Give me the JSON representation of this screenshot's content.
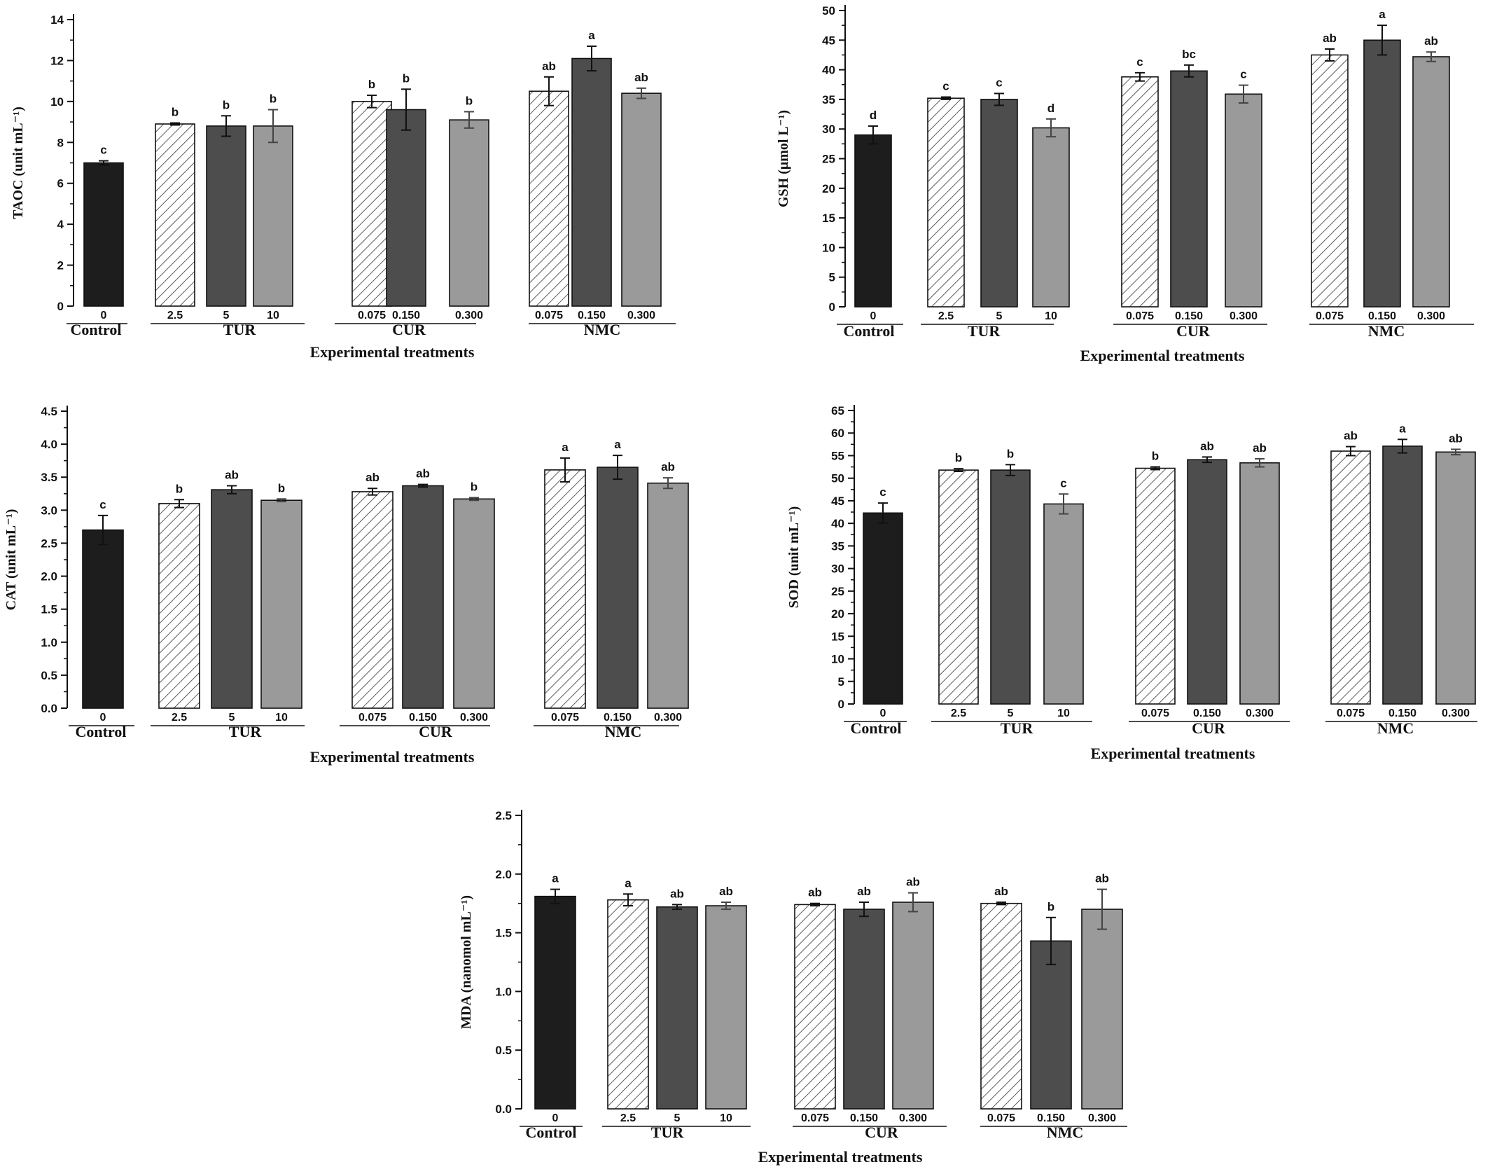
{
  "chart_data": [
    {
      "id": "taoc",
      "type": "bar",
      "ylabel": "TAOC (unit mL⁻¹)",
      "xlabel": "Experimental treatments",
      "ylim": [
        0,
        14
      ],
      "yticks": [
        "0",
        "2",
        "4",
        "6",
        "8",
        "10",
        "12",
        "14"
      ],
      "ytick_values": [
        0,
        2,
        4,
        6,
        8,
        10,
        12,
        14
      ],
      "groups": [
        {
          "name": "Control",
          "bars": [
            {
              "label": "0",
              "style": "black",
              "value": 7.0,
              "error": 0.1,
              "sig": "c"
            }
          ]
        },
        {
          "name": "TUR",
          "bars": [
            {
              "label": "2.5",
              "style": "hatch",
              "value": 8.9,
              "error": 0.05,
              "sig": "b"
            },
            {
              "label": "5",
              "style": "dark",
              "value": 8.8,
              "error": 0.5,
              "sig": "b"
            },
            {
              "label": "10",
              "style": "light",
              "value": 8.8,
              "error": 0.8,
              "sig": "b"
            }
          ]
        },
        {
          "name": "CUR",
          "bars": [
            {
              "label": "0.075",
              "style": "hatch",
              "value": 10.0,
              "error": 0.3,
              "sig": "b"
            },
            {
              "label": "0.150",
              "style": "dark",
              "value": 9.6,
              "error": 1.0,
              "sig": "b"
            },
            {
              "label": "0.300",
              "style": "light",
              "value": 9.1,
              "error": 0.4,
              "sig": "b"
            }
          ]
        },
        {
          "name": "NMC",
          "bars": [
            {
              "label": "0.075",
              "style": "hatch",
              "value": 10.5,
              "error": 0.7,
              "sig": "ab"
            },
            {
              "label": "0.150",
              "style": "dark",
              "value": 12.1,
              "error": 0.6,
              "sig": "a"
            },
            {
              "label": "0.300",
              "style": "light",
              "value": 10.4,
              "error": 0.25,
              "sig": "ab"
            }
          ]
        }
      ]
    },
    {
      "id": "gsh",
      "type": "bar",
      "ylabel": "GSH (μmol L⁻¹)",
      "xlabel": "Experimental treatments",
      "ylim": [
        0,
        50
      ],
      "yticks": [
        "0",
        "5",
        "10",
        "15",
        "20",
        "25",
        "30",
        "35",
        "40",
        "45",
        "50"
      ],
      "ytick_values": [
        0,
        5,
        10,
        15,
        20,
        25,
        30,
        35,
        40,
        45,
        50
      ],
      "groups": [
        {
          "name": "Control",
          "bars": [
            {
              "label": "0",
              "style": "black",
              "value": 29.0,
              "error": 1.5,
              "sig": "d"
            }
          ]
        },
        {
          "name": "TUR",
          "bars": [
            {
              "label": "2.5",
              "style": "hatch",
              "value": 35.2,
              "error": 0.2,
              "sig": "c"
            },
            {
              "label": "5",
              "style": "dark",
              "value": 35.0,
              "error": 1.0,
              "sig": "c"
            },
            {
              "label": "10",
              "style": "light",
              "value": 30.2,
              "error": 1.5,
              "sig": "d"
            }
          ]
        },
        {
          "name": "CUR",
          "bars": [
            {
              "label": "0.075",
              "style": "hatch",
              "value": 38.8,
              "error": 0.7,
              "sig": "c"
            },
            {
              "label": "0.150",
              "style": "dark",
              "value": 39.8,
              "error": 1.0,
              "sig": "bc"
            },
            {
              "label": "0.300",
              "style": "light",
              "value": 35.9,
              "error": 1.5,
              "sig": "c"
            }
          ]
        },
        {
          "name": "NMC",
          "bars": [
            {
              "label": "0.075",
              "style": "hatch",
              "value": 42.5,
              "error": 1.0,
              "sig": "ab"
            },
            {
              "label": "0.150",
              "style": "dark",
              "value": 45.0,
              "error": 2.5,
              "sig": "a"
            },
            {
              "label": "0.300",
              "style": "light",
              "value": 42.2,
              "error": 0.8,
              "sig": "ab"
            }
          ]
        }
      ]
    },
    {
      "id": "cat",
      "type": "bar",
      "ylabel": "CAT (unit mL⁻¹)",
      "xlabel": "Experimental treatments",
      "ylim": [
        0,
        4.5
      ],
      "yticks": [
        "0.0",
        "0.5",
        "1.0",
        "1.5",
        "2.0",
        "2.5",
        "3.0",
        "3.5",
        "4.0",
        "4.5"
      ],
      "ytick_values": [
        0,
        0.5,
        1.0,
        1.5,
        2.0,
        2.5,
        3.0,
        3.5,
        4.0,
        4.5
      ],
      "groups": [
        {
          "name": "Control",
          "bars": [
            {
              "label": "0",
              "style": "black",
              "value": 2.7,
              "error": 0.22,
              "sig": "c"
            }
          ]
        },
        {
          "name": "TUR",
          "bars": [
            {
              "label": "2.5",
              "style": "hatch",
              "value": 3.1,
              "error": 0.06,
              "sig": "b"
            },
            {
              "label": "5",
              "style": "dark",
              "value": 3.31,
              "error": 0.06,
              "sig": "ab"
            },
            {
              "label": "10",
              "style": "light",
              "value": 3.15,
              "error": 0.02,
              "sig": "b"
            }
          ]
        },
        {
          "name": "CUR",
          "bars": [
            {
              "label": "0.075",
              "style": "hatch",
              "value": 3.28,
              "error": 0.05,
              "sig": "ab"
            },
            {
              "label": "0.150",
              "style": "dark",
              "value": 3.37,
              "error": 0.02,
              "sig": "ab"
            },
            {
              "label": "0.300",
              "style": "light",
              "value": 3.17,
              "error": 0.02,
              "sig": "b"
            }
          ]
        },
        {
          "name": "NMC",
          "bars": [
            {
              "label": "0.075",
              "style": "hatch",
              "value": 3.61,
              "error": 0.18,
              "sig": "a"
            },
            {
              "label": "0.150",
              "style": "dark",
              "value": 3.65,
              "error": 0.18,
              "sig": "a"
            },
            {
              "label": "0.300",
              "style": "light",
              "value": 3.41,
              "error": 0.08,
              "sig": "ab"
            }
          ]
        }
      ]
    },
    {
      "id": "sod",
      "type": "bar",
      "ylabel": "SOD (unit mL⁻¹)",
      "xlabel": "Experimental treatments",
      "ylim": [
        0,
        65
      ],
      "yticks": [
        "0",
        "5",
        "10",
        "15",
        "20",
        "25",
        "30",
        "35",
        "40",
        "45",
        "50",
        "55",
        "60",
        "65"
      ],
      "ytick_values": [
        0,
        5,
        10,
        15,
        20,
        25,
        30,
        35,
        40,
        45,
        50,
        55,
        60,
        65
      ],
      "groups": [
        {
          "name": "Control",
          "bars": [
            {
              "label": "0",
              "style": "black",
              "value": 42.3,
              "error": 2.2,
              "sig": "c"
            }
          ]
        },
        {
          "name": "TUR",
          "bars": [
            {
              "label": "2.5",
              "style": "hatch",
              "value": 51.8,
              "error": 0.3,
              "sig": "b"
            },
            {
              "label": "5",
              "style": "dark",
              "value": 51.8,
              "error": 1.2,
              "sig": "b"
            },
            {
              "label": "10",
              "style": "light",
              "value": 44.3,
              "error": 2.2,
              "sig": "c"
            }
          ]
        },
        {
          "name": "CUR",
          "bars": [
            {
              "label": "0.075",
              "style": "hatch",
              "value": 52.2,
              "error": 0.3,
              "sig": "b"
            },
            {
              "label": "0.150",
              "style": "dark",
              "value": 54.1,
              "error": 0.6,
              "sig": "ab"
            },
            {
              "label": "0.300",
              "style": "light",
              "value": 53.4,
              "error": 0.9,
              "sig": "ab"
            }
          ]
        },
        {
          "name": "NMC",
          "bars": [
            {
              "label": "0.075",
              "style": "hatch",
              "value": 56.0,
              "error": 1.0,
              "sig": "ab"
            },
            {
              "label": "0.150",
              "style": "dark",
              "value": 57.1,
              "error": 1.5,
              "sig": "a"
            },
            {
              "label": "0.300",
              "style": "light",
              "value": 55.8,
              "error": 0.6,
              "sig": "ab"
            }
          ]
        }
      ]
    },
    {
      "id": "mda",
      "type": "bar",
      "ylabel": "MDA (nanomol mL⁻¹)",
      "xlabel": "Experimental treatments",
      "ylim": [
        0,
        2.5
      ],
      "yticks": [
        "0.0",
        "0.5",
        "1.0",
        "1.5",
        "2.0",
        "2.5"
      ],
      "ytick_values": [
        0,
        0.5,
        1.0,
        1.5,
        2.0,
        2.5
      ],
      "groups": [
        {
          "name": "Control",
          "bars": [
            {
              "label": "0",
              "style": "black",
              "value": 1.81,
              "error": 0.06,
              "sig": "a"
            }
          ]
        },
        {
          "name": "TUR",
          "bars": [
            {
              "label": "2.5",
              "style": "hatch",
              "value": 1.78,
              "error": 0.05,
              "sig": "a"
            },
            {
              "label": "5",
              "style": "dark",
              "value": 1.72,
              "error": 0.02,
              "sig": "ab"
            },
            {
              "label": "10",
              "style": "light",
              "value": 1.73,
              "error": 0.03,
              "sig": "ab"
            }
          ]
        },
        {
          "name": "CUR",
          "bars": [
            {
              "label": "0.075",
              "style": "hatch",
              "value": 1.74,
              "error": 0.01,
              "sig": "ab"
            },
            {
              "label": "0.150",
              "style": "dark",
              "value": 1.7,
              "error": 0.06,
              "sig": "ab"
            },
            {
              "label": "0.300",
              "style": "light",
              "value": 1.76,
              "error": 0.08,
              "sig": "ab"
            }
          ]
        },
        {
          "name": "NMC",
          "bars": [
            {
              "label": "0.075",
              "style": "hatch",
              "value": 1.75,
              "error": 0.01,
              "sig": "ab"
            },
            {
              "label": "0.150",
              "style": "dark",
              "value": 1.43,
              "error": 0.2,
              "sig": "b"
            },
            {
              "label": "0.300",
              "style": "light",
              "value": 1.7,
              "error": 0.17,
              "sig": "ab"
            }
          ]
        }
      ]
    }
  ],
  "colors": {
    "black": "#1d1d1d",
    "dark": "#4d4d4d",
    "light": "#9a9a9a",
    "hatch_fill": "#ffffff",
    "hatch_line": "#333333"
  }
}
